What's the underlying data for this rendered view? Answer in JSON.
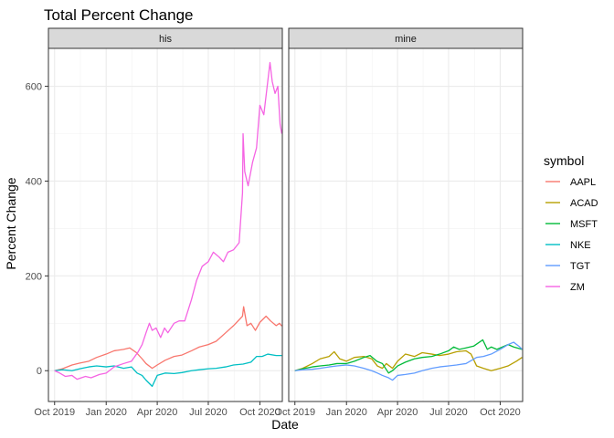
{
  "chart_data": {
    "type": "line",
    "title": "Total Percent Change",
    "xlabel": "Date",
    "ylabel": "Percent Change",
    "x_ticks": [
      "Oct 2019",
      "Jan 2020",
      "Apr 2020",
      "Jul 2020",
      "Oct 2020"
    ],
    "x_range": [
      "2019-09-20",
      "2020-11-10"
    ],
    "y_ticks": [
      0,
      200,
      400,
      600
    ],
    "ylim": [
      -65,
      680
    ],
    "grid": true,
    "legend": {
      "title": "symbol",
      "position": "right",
      "entries": [
        {
          "label": "AAPL",
          "color": "#F8766D"
        },
        {
          "label": "ACAD",
          "color": "#B79F00"
        },
        {
          "label": "MSFT",
          "color": "#00BA38"
        },
        {
          "label": "NKE",
          "color": "#00BFC4"
        },
        {
          "label": "TGT",
          "color": "#619CFF"
        },
        {
          "label": "ZM",
          "color": "#F564E3"
        }
      ]
    },
    "panels": [
      {
        "strip": "his",
        "series": [
          {
            "name": "AAPL",
            "color": "#F8766D",
            "points": [
              [
                "2019-10-01",
                0
              ],
              [
                "2019-10-15",
                4
              ],
              [
                "2019-11-01",
                12
              ],
              [
                "2019-11-15",
                16
              ],
              [
                "2019-12-01",
                20
              ],
              [
                "2019-12-15",
                28
              ],
              [
                "2020-01-01",
                35
              ],
              [
                "2020-01-15",
                42
              ],
              [
                "2020-02-01",
                45
              ],
              [
                "2020-02-12",
                48
              ],
              [
                "2020-02-24",
                38
              ],
              [
                "2020-03-05",
                25
              ],
              [
                "2020-03-12",
                15
              ],
              [
                "2020-03-23",
                5
              ],
              [
                "2020-04-01",
                12
              ],
              [
                "2020-04-15",
                22
              ],
              [
                "2020-05-01",
                30
              ],
              [
                "2020-05-15",
                33
              ],
              [
                "2020-06-01",
                42
              ],
              [
                "2020-06-15",
                50
              ],
              [
                "2020-07-01",
                55
              ],
              [
                "2020-07-15",
                62
              ],
              [
                "2020-08-01",
                80
              ],
              [
                "2020-08-15",
                95
              ],
              [
                "2020-08-31",
                115
              ],
              [
                "2020-09-02",
                135
              ],
              [
                "2020-09-08",
                95
              ],
              [
                "2020-09-15",
                100
              ],
              [
                "2020-09-23",
                85
              ],
              [
                "2020-10-01",
                102
              ],
              [
                "2020-10-12",
                115
              ],
              [
                "2020-10-20",
                105
              ],
              [
                "2020-10-30",
                95
              ],
              [
                "2020-11-05",
                100
              ],
              [
                "2020-11-09",
                94
              ]
            ]
          },
          {
            "name": "NKE",
            "color": "#00BFC4",
            "points": [
              [
                "2019-10-01",
                0
              ],
              [
                "2019-10-15",
                2
              ],
              [
                "2019-11-01",
                0
              ],
              [
                "2019-11-15",
                4
              ],
              [
                "2019-12-01",
                8
              ],
              [
                "2019-12-15",
                10
              ],
              [
                "2020-01-01",
                8
              ],
              [
                "2020-01-15",
                10
              ],
              [
                "2020-02-01",
                5
              ],
              [
                "2020-02-15",
                8
              ],
              [
                "2020-02-25",
                -5
              ],
              [
                "2020-03-05",
                -10
              ],
              [
                "2020-03-12",
                -20
              ],
              [
                "2020-03-23",
                -33
              ],
              [
                "2020-04-01",
                -10
              ],
              [
                "2020-04-15",
                -5
              ],
              [
                "2020-05-01",
                -6
              ],
              [
                "2020-05-15",
                -4
              ],
              [
                "2020-06-01",
                0
              ],
              [
                "2020-06-15",
                2
              ],
              [
                "2020-07-01",
                4
              ],
              [
                "2020-07-15",
                5
              ],
              [
                "2020-08-01",
                8
              ],
              [
                "2020-08-15",
                12
              ],
              [
                "2020-09-01",
                14
              ],
              [
                "2020-09-15",
                18
              ],
              [
                "2020-09-25",
                30
              ],
              [
                "2020-10-05",
                30
              ],
              [
                "2020-10-15",
                35
              ],
              [
                "2020-10-30",
                32
              ],
              [
                "2020-11-09",
                32
              ]
            ]
          },
          {
            "name": "ZM",
            "color": "#F564E3",
            "points": [
              [
                "2019-10-01",
                0
              ],
              [
                "2019-10-10",
                -5
              ],
              [
                "2019-10-20",
                -12
              ],
              [
                "2019-11-01",
                -10
              ],
              [
                "2019-11-10",
                -18
              ],
              [
                "2019-11-25",
                -12
              ],
              [
                "2019-12-05",
                -15
              ],
              [
                "2019-12-20",
                -8
              ],
              [
                "2020-01-01",
                -5
              ],
              [
                "2020-01-15",
                8
              ],
              [
                "2020-02-01",
                15
              ],
              [
                "2020-02-15",
                20
              ],
              [
                "2020-02-27",
                40
              ],
              [
                "2020-03-05",
                55
              ],
              [
                "2020-03-12",
                80
              ],
              [
                "2020-03-18",
                100
              ],
              [
                "2020-03-23",
                85
              ],
              [
                "2020-03-30",
                90
              ],
              [
                "2020-04-07",
                70
              ],
              [
                "2020-04-14",
                90
              ],
              [
                "2020-04-20",
                80
              ],
              [
                "2020-05-01",
                100
              ],
              [
                "2020-05-10",
                105
              ],
              [
                "2020-05-20",
                105
              ],
              [
                "2020-06-01",
                150
              ],
              [
                "2020-06-10",
                190
              ],
              [
                "2020-06-20",
                220
              ],
              [
                "2020-07-01",
                230
              ],
              [
                "2020-07-10",
                250
              ],
              [
                "2020-07-20",
                240
              ],
              [
                "2020-07-28",
                230
              ],
              [
                "2020-08-05",
                250
              ],
              [
                "2020-08-15",
                255
              ],
              [
                "2020-08-25",
                270
              ],
              [
                "2020-08-31",
                375
              ],
              [
                "2020-09-01",
                500
              ],
              [
                "2020-09-04",
                420
              ],
              [
                "2020-09-10",
                390
              ],
              [
                "2020-09-18",
                440
              ],
              [
                "2020-09-25",
                470
              ],
              [
                "2020-10-01",
                560
              ],
              [
                "2020-10-08",
                540
              ],
              [
                "2020-10-14",
                600
              ],
              [
                "2020-10-19",
                650
              ],
              [
                "2020-10-23",
                610
              ],
              [
                "2020-10-28",
                585
              ],
              [
                "2020-11-02",
                600
              ],
              [
                "2020-11-06",
                520
              ],
              [
                "2020-11-09",
                500
              ]
            ]
          }
        ]
      },
      {
        "strip": "mine",
        "series": [
          {
            "name": "ACAD",
            "color": "#B79F00",
            "points": [
              [
                "2019-10-01",
                0
              ],
              [
                "2019-10-15",
                5
              ],
              [
                "2019-11-01",
                15
              ],
              [
                "2019-11-15",
                25
              ],
              [
                "2019-12-01",
                30
              ],
              [
                "2019-12-10",
                40
              ],
              [
                "2019-12-20",
                25
              ],
              [
                "2020-01-01",
                20
              ],
              [
                "2020-01-15",
                28
              ],
              [
                "2020-02-01",
                30
              ],
              [
                "2020-02-15",
                25
              ],
              [
                "2020-02-25",
                10
              ],
              [
                "2020-03-05",
                5
              ],
              [
                "2020-03-12",
                15
              ],
              [
                "2020-03-23",
                5
              ],
              [
                "2020-04-01",
                20
              ],
              [
                "2020-04-15",
                35
              ],
              [
                "2020-05-01",
                30
              ],
              [
                "2020-05-15",
                38
              ],
              [
                "2020-06-01",
                35
              ],
              [
                "2020-06-15",
                32
              ],
              [
                "2020-07-01",
                35
              ],
              [
                "2020-07-15",
                40
              ],
              [
                "2020-08-01",
                42
              ],
              [
                "2020-08-10",
                35
              ],
              [
                "2020-08-20",
                10
              ],
              [
                "2020-09-01",
                5
              ],
              [
                "2020-09-15",
                0
              ],
              [
                "2020-10-01",
                5
              ],
              [
                "2020-10-15",
                10
              ],
              [
                "2020-10-30",
                20
              ],
              [
                "2020-11-09",
                28
              ]
            ]
          },
          {
            "name": "MSFT",
            "color": "#00BA38",
            "points": [
              [
                "2019-10-01",
                0
              ],
              [
                "2019-10-15",
                4
              ],
              [
                "2019-11-01",
                8
              ],
              [
                "2019-11-15",
                10
              ],
              [
                "2019-12-01",
                12
              ],
              [
                "2019-12-15",
                15
              ],
              [
                "2020-01-01",
                15
              ],
              [
                "2020-01-15",
                20
              ],
              [
                "2020-02-01",
                28
              ],
              [
                "2020-02-12",
                32
              ],
              [
                "2020-02-24",
                20
              ],
              [
                "2020-03-05",
                15
              ],
              [
                "2020-03-16",
                -5
              ],
              [
                "2020-03-23",
                0
              ],
              [
                "2020-04-01",
                10
              ],
              [
                "2020-04-15",
                18
              ],
              [
                "2020-05-01",
                25
              ],
              [
                "2020-05-15",
                28
              ],
              [
                "2020-06-01",
                30
              ],
              [
                "2020-06-15",
                35
              ],
              [
                "2020-07-01",
                42
              ],
              [
                "2020-07-10",
                50
              ],
              [
                "2020-07-20",
                45
              ],
              [
                "2020-08-01",
                48
              ],
              [
                "2020-08-15",
                52
              ],
              [
                "2020-08-31",
                65
              ],
              [
                "2020-09-08",
                45
              ],
              [
                "2020-09-15",
                50
              ],
              [
                "2020-09-25",
                45
              ],
              [
                "2020-10-05",
                50
              ],
              [
                "2020-10-15",
                55
              ],
              [
                "2020-10-25",
                50
              ],
              [
                "2020-11-09",
                45
              ]
            ]
          },
          {
            "name": "TGT",
            "color": "#619CFF",
            "points": [
              [
                "2019-10-01",
                0
              ],
              [
                "2019-10-15",
                2
              ],
              [
                "2019-11-01",
                3
              ],
              [
                "2019-11-15",
                5
              ],
              [
                "2019-12-01",
                8
              ],
              [
                "2019-12-15",
                10
              ],
              [
                "2020-01-01",
                12
              ],
              [
                "2020-01-15",
                10
              ],
              [
                "2020-02-01",
                5
              ],
              [
                "2020-02-15",
                0
              ],
              [
                "2020-02-25",
                -5
              ],
              [
                "2020-03-05",
                -10
              ],
              [
                "2020-03-16",
                -15
              ],
              [
                "2020-03-23",
                -20
              ],
              [
                "2020-04-01",
                -10
              ],
              [
                "2020-04-15",
                -8
              ],
              [
                "2020-05-01",
                -5
              ],
              [
                "2020-05-15",
                0
              ],
              [
                "2020-06-01",
                5
              ],
              [
                "2020-06-15",
                8
              ],
              [
                "2020-07-01",
                10
              ],
              [
                "2020-07-15",
                12
              ],
              [
                "2020-08-01",
                15
              ],
              [
                "2020-08-20",
                28
              ],
              [
                "2020-09-01",
                30
              ],
              [
                "2020-09-15",
                35
              ],
              [
                "2020-10-01",
                45
              ],
              [
                "2020-10-15",
                55
              ],
              [
                "2020-10-25",
                60
              ],
              [
                "2020-11-05",
                50
              ],
              [
                "2020-11-09",
                45
              ]
            ]
          }
        ]
      }
    ]
  }
}
